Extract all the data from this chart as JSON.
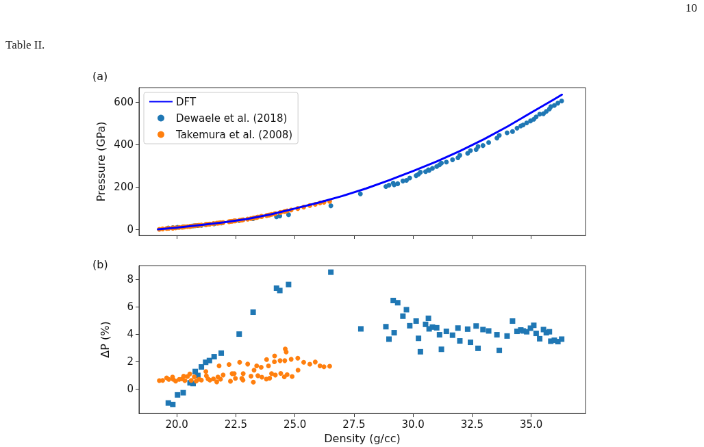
{
  "chart_data": [
    {
      "type": "scatter",
      "title": "(a)",
      "ylabel": "Pressure (GPa)",
      "annotations": [
        "10",
        "Table II."
      ],
      "xlim": [
        18.4,
        37.3
      ],
      "ylim": [
        -29,
        668
      ],
      "xticks": [
        {
          "value": 20,
          "label": null
        },
        {
          "value": 22.5,
          "label": null
        },
        {
          "value": 25,
          "label": null
        },
        {
          "value": 27.5,
          "label": null
        },
        {
          "value": 30,
          "label": null
        },
        {
          "value": 32.5,
          "label": null
        },
        {
          "value": 35,
          "label": null
        }
      ],
      "yticks": [
        0,
        200,
        400,
        600
      ],
      "tick_labels": "y",
      "grid": false,
      "legend": "top left",
      "series": [
        {
          "name": "DFT",
          "type": "line",
          "color": "#0000ff",
          "line_style": "solid",
          "marker": "none",
          "x": [
            19.2,
            20,
            21,
            22,
            23,
            24,
            25,
            26,
            27,
            28,
            29,
            30,
            31,
            32,
            33,
            34,
            35,
            36,
            36.3
          ],
          "values": [
            0,
            8,
            20,
            33,
            49,
            71,
            98,
            126,
            157,
            192,
            232,
            275,
            320,
            370,
            425,
            485,
            550,
            615,
            635
          ]
        },
        {
          "name": "Dewaele et al. (2018)",
          "color": "#1f77b4",
          "marker": "circle",
          "x": [
            19.64,
            19.83,
            20.03,
            20.27,
            20.56,
            20.69,
            20.78,
            20.89,
            21.04,
            21.22,
            21.38,
            21.58,
            21.88,
            22.64,
            23.23,
            24.22,
            24.36,
            24.73,
            26.52,
            27.77,
            28.85,
            28.98,
            29.16,
            29.2,
            29.35,
            29.57,
            29.72,
            29.86,
            30.13,
            30.23,
            30.31,
            30.53,
            30.65,
            30.68,
            30.82,
            31.0,
            31.12,
            31.2,
            31.41,
            31.67,
            31.9,
            31.98,
            32.31,
            32.43,
            32.67,
            32.75,
            32.96,
            33.2,
            33.55,
            33.65,
            33.98,
            34.21,
            34.4,
            34.56,
            34.66,
            34.81,
            34.97,
            35.11,
            35.21,
            35.36,
            35.52,
            35.64,
            35.77,
            35.83,
            35.98,
            36.13,
            36.29
          ],
          "values": [
            6,
            8,
            10,
            12,
            14,
            16,
            17,
            18,
            19,
            22,
            24,
            26,
            30,
            41,
            50,
            59,
            63,
            69,
            111,
            167,
            202,
            208,
            218,
            210,
            215,
            228,
            231,
            242,
            253,
            260,
            269,
            272,
            281,
            278,
            287,
            296,
            304,
            312,
            317,
            328,
            337,
            349,
            358,
            371,
            376,
            390,
            395,
            409,
            430,
            443,
            455,
            461,
            477,
            487,
            492,
            502,
            511,
            519,
            530,
            543,
            545,
            556,
            567,
            578,
            584,
            595,
            605
          ]
        },
        {
          "name": "Takemura et al. (2008)",
          "color": "#ff7f0e",
          "marker": "circle",
          "x": [
            19.26,
            19.4,
            19.57,
            19.66,
            19.82,
            19.84,
            19.95,
            20.1,
            20.22,
            20.29,
            20.34,
            20.45,
            20.55,
            20.61,
            20.74,
            20.82,
            20.94,
            21.04,
            21.23,
            21.25,
            21.32,
            21.4,
            21.55,
            21.69,
            21.74,
            21.79,
            21.85,
            21.96,
            22.21,
            22.27,
            22.34,
            22.43,
            22.48,
            22.66,
            22.75,
            22.81,
            23.0,
            23.14,
            23.24,
            23.27,
            23.38,
            23.43,
            23.57,
            23.6,
            23.8,
            23.88,
            23.93,
            24.01,
            24.14,
            24.17,
            24.37,
            24.4,
            24.55,
            24.59,
            24.67,
            24.84,
            25.12,
            25.37,
            25.63,
            25.86,
            26.06,
            26.23,
            26.47
          ],
          "values": [
            0,
            2,
            4,
            5,
            6,
            6,
            7,
            9,
            10,
            11,
            12,
            13,
            14,
            15,
            17,
            18,
            19,
            20,
            23,
            23,
            24,
            25,
            27,
            29,
            29,
            30,
            31,
            32,
            36,
            37,
            38,
            40,
            40,
            43,
            44,
            45,
            48,
            51,
            53,
            54,
            56,
            58,
            61,
            61,
            65,
            67,
            68,
            70,
            73,
            74,
            79,
            80,
            84,
            85,
            87,
            91,
            98,
            105,
            112,
            118,
            124,
            128,
            132
          ]
        }
      ]
    },
    {
      "type": "scatter",
      "title": "(b)",
      "xlabel": "Density (g/cc)",
      "ylabel": "ΔP (%)",
      "xlim": [
        18.4,
        37.3
      ],
      "ylim": [
        -1.8,
        9.0
      ],
      "xticks": [
        {
          "value": 20,
          "label": "20.0"
        },
        {
          "value": 22.5,
          "label": "22.5"
        },
        {
          "value": 25,
          "label": "25.0"
        },
        {
          "value": 27.5,
          "label": "27.5"
        },
        {
          "value": 30,
          "label": "30.0"
        },
        {
          "value": 32.5,
          "label": "32.5"
        },
        {
          "value": 35,
          "label": "35.0"
        }
      ],
      "yticks": [
        0,
        2,
        4,
        6,
        8
      ],
      "grid": false,
      "series": [
        {
          "color": "#1f77b4",
          "marker": "square",
          "x": [
            19.64,
            19.83,
            20.03,
            20.27,
            20.56,
            20.69,
            20.78,
            20.89,
            21.04,
            21.22,
            21.38,
            21.58,
            21.88,
            22.64,
            23.23,
            24.22,
            24.36,
            24.73,
            26.52,
            27.79,
            28.85,
            28.98,
            29.16,
            29.2,
            29.35,
            29.57,
            29.72,
            29.86,
            30.13,
            30.23,
            30.31,
            30.53,
            30.65,
            30.68,
            30.82,
            31.0,
            31.12,
            31.2,
            31.41,
            31.67,
            31.9,
            31.98,
            32.31,
            32.43,
            32.67,
            32.75,
            32.96,
            33.2,
            33.55,
            33.65,
            33.98,
            34.21,
            34.4,
            34.56,
            34.66,
            34.81,
            34.97,
            35.11,
            35.21,
            35.36,
            35.52,
            35.64,
            35.77,
            35.83,
            35.98,
            36.13,
            36.29
          ],
          "values": [
            -1.03,
            -1.14,
            -0.44,
            -0.28,
            0.44,
            0.39,
            1.27,
            0.98,
            1.6,
            1.94,
            2.07,
            2.35,
            2.61,
            4.0,
            5.6,
            7.35,
            7.18,
            7.62,
            8.52,
            4.38,
            4.54,
            3.63,
            6.45,
            4.1,
            6.29,
            5.31,
            5.78,
            4.61,
            4.95,
            3.69,
            2.71,
            4.71,
            5.15,
            4.38,
            4.51,
            4.46,
            3.95,
            2.89,
            4.2,
            3.92,
            4.44,
            3.5,
            4.36,
            3.4,
            4.59,
            2.96,
            4.33,
            4.23,
            3.95,
            2.81,
            3.86,
            4.95,
            4.2,
            4.3,
            4.23,
            4.17,
            4.43,
            4.64,
            4.05,
            3.66,
            4.33,
            4.1,
            4.17,
            3.48,
            3.55,
            3.45,
            3.63
          ]
        },
        {
          "color": "#ff7f0e",
          "marker": "circle",
          "x": [
            19.26,
            19.4,
            19.57,
            19.66,
            19.82,
            19.84,
            19.95,
            20.1,
            20.22,
            20.29,
            20.34,
            20.45,
            20.55,
            20.61,
            20.74,
            20.82,
            20.94,
            21.04,
            21.23,
            21.25,
            21.32,
            21.4,
            21.55,
            21.69,
            21.74,
            21.79,
            21.85,
            21.96,
            22.21,
            22.27,
            22.34,
            22.43,
            22.48,
            22.66,
            22.75,
            22.8,
            22.81,
            23.0,
            23.14,
            23.24,
            23.27,
            23.38,
            23.43,
            23.57,
            23.6,
            23.79,
            23.8,
            23.88,
            23.93,
            24.01,
            24.13,
            24.14,
            24.17,
            24.37,
            24.4,
            24.55,
            24.57,
            24.59,
            24.63,
            24.67,
            24.84,
            24.88,
            25.12,
            25.13,
            25.37,
            25.63,
            25.86,
            26.06,
            26.23,
            26.47
          ],
          "values": [
            0.6,
            0.62,
            0.8,
            0.69,
            0.87,
            0.7,
            0.57,
            0.69,
            0.73,
            0.93,
            0.6,
            0.9,
            1.09,
            0.62,
            0.88,
            0.57,
            0.7,
            0.64,
            1.27,
            0.95,
            0.73,
            0.64,
            0.73,
            0.51,
            0.87,
            1.68,
            0.7,
            1.01,
            1.78,
            0.56,
            1.11,
            1.11,
            0.77,
            1.94,
            0.77,
            0.64,
            1.11,
            1.81,
            0.93,
            0.49,
            1.37,
            1.68,
            0.96,
            1.58,
            0.85,
            0.72,
            2.14,
            1.68,
            0.78,
            1.11,
            1.98,
            2.4,
            1.01,
            2.06,
            1.13,
            0.88,
            2.06,
            2.91,
            2.69,
            1.04,
            2.16,
            0.9,
            2.24,
            1.37,
            1.94,
            1.8,
            1.96,
            1.68,
            1.62,
            1.65
          ]
        }
      ]
    }
  ]
}
